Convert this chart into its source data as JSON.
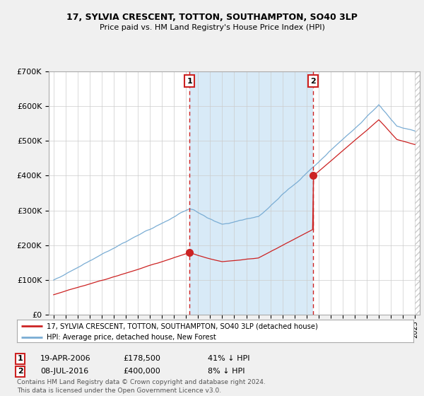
{
  "title": "17, SYLVIA CRESCENT, TOTTON, SOUTHAMPTON, SO40 3LP",
  "subtitle": "Price paid vs. HM Land Registry's House Price Index (HPI)",
  "ylim": [
    0,
    700000
  ],
  "yticks": [
    0,
    100000,
    200000,
    300000,
    400000,
    500000,
    600000,
    700000
  ],
  "ytick_labels": [
    "£0",
    "£100K",
    "£200K",
    "£300K",
    "£400K",
    "£500K",
    "£600K",
    "£700K"
  ],
  "bg_color": "#f0f0f0",
  "plot_bg_color": "#ffffff",
  "grid_color": "#cccccc",
  "hpi_color": "#7aadd4",
  "price_color": "#cc2222",
  "shade_color": "#d8eaf7",
  "t1": 2006.29,
  "t2": 2016.52,
  "price1": 178500,
  "price2": 400000,
  "legend_price_label": "17, SYLVIA CRESCENT, TOTTON, SOUTHAMPTON, SO40 3LP (detached house)",
  "legend_hpi_label": "HPI: Average price, detached house, New Forest",
  "note1_label": "1",
  "note1_date": "19-APR-2006",
  "note1_price": "£178,500",
  "note1_pct": "41% ↓ HPI",
  "note2_label": "2",
  "note2_date": "08-JUL-2016",
  "note2_price": "£400,000",
  "note2_pct": "8% ↓ HPI",
  "footer": "Contains HM Land Registry data © Crown copyright and database right 2024.\nThis data is licensed under the Open Government Licence v3.0.",
  "xlim_left": 1994.6,
  "xlim_right": 2025.4
}
